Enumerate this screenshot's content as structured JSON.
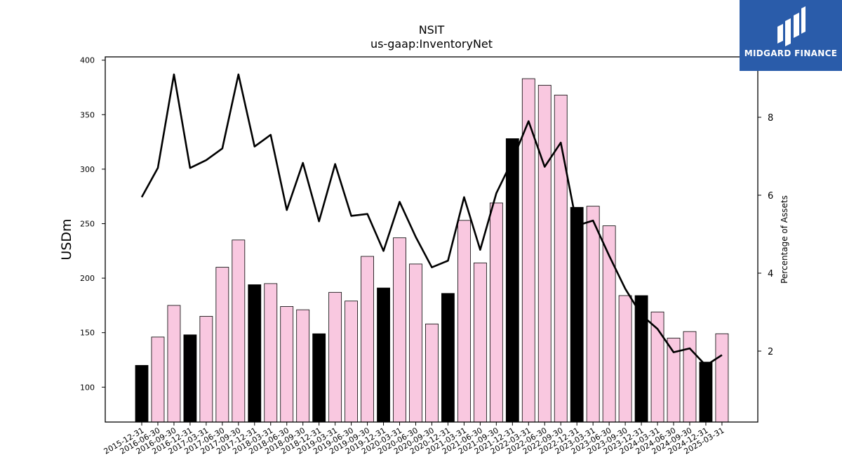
{
  "header": {
    "title": "NSIT",
    "subtitle": "us-gaap:InventoryNet"
  },
  "logo": {
    "text": "MIDGARD FINANCE",
    "icon": "midgard-logo-icon",
    "background": "#2a5caa"
  },
  "colors": {
    "bar_highlight": "#000000",
    "bar_normal": "#f9c8e0",
    "line": "#000000"
  },
  "chart_data": {
    "type": "bar",
    "title": "NSIT",
    "subtitle": "us-gaap:InventoryNet",
    "ylabel": "USDm",
    "y2label": "Percentage of Assets",
    "ylim": [
      68,
      403
    ],
    "y2lim": [
      0.18,
      9.55
    ],
    "yticks": [
      100,
      150,
      200,
      250,
      300,
      350,
      400
    ],
    "y2ticks": [
      2,
      4,
      6,
      8
    ],
    "grid": false,
    "categories": [
      "2015-12-31",
      "2016-06-30",
      "2016-09-30",
      "2016-12-31",
      "2017-03-31",
      "2017-06-30",
      "2017-09-30",
      "2017-12-31",
      "2018-03-31",
      "2018-06-30",
      "2018-09-30",
      "2018-12-31",
      "2019-03-31",
      "2019-06-30",
      "2019-09-30",
      "2019-12-31",
      "2020-03-31",
      "2020-06-30",
      "2020-09-30",
      "2020-12-31",
      "2021-03-31",
      "2021-06-30",
      "2021-09-30",
      "2021-12-31",
      "2022-03-31",
      "2022-06-30",
      "2022-09-30",
      "2022-12-31",
      "2023-03-31",
      "2023-06-30",
      "2023-09-30",
      "2023-12-31",
      "2024-03-31",
      "2024-06-30",
      "2024-09-30",
      "2024-12-31",
      "2025-03-31"
    ],
    "series": [
      {
        "type": "bar",
        "axis": "left",
        "values": [
          120,
          146,
          175,
          148,
          165,
          210,
          235,
          194,
          195,
          174,
          171,
          149,
          187,
          179,
          220,
          191,
          237,
          213,
          158,
          186,
          253,
          214,
          269,
          328,
          383,
          377,
          368,
          265,
          266,
          248,
          184,
          184,
          169,
          145,
          151,
          123,
          149
        ],
        "highlight": [
          true,
          false,
          false,
          true,
          false,
          false,
          false,
          true,
          false,
          false,
          false,
          true,
          false,
          false,
          false,
          true,
          false,
          false,
          false,
          true,
          false,
          false,
          false,
          true,
          false,
          false,
          false,
          true,
          false,
          false,
          false,
          true,
          false,
          false,
          false,
          true,
          false
        ]
      },
      {
        "type": "line",
        "axis": "right",
        "values": [
          5.95,
          6.7,
          9.1,
          6.7,
          6.9,
          7.2,
          9.1,
          7.25,
          7.55,
          5.62,
          6.83,
          5.33,
          6.8,
          5.47,
          5.52,
          4.57,
          5.83,
          4.93,
          4.15,
          4.32,
          5.95,
          4.6,
          6.05,
          6.9,
          7.9,
          6.73,
          7.35,
          5.22,
          5.35,
          4.45,
          3.6,
          2.93,
          2.57,
          1.97,
          2.07,
          1.63,
          1.9
        ]
      }
    ]
  }
}
